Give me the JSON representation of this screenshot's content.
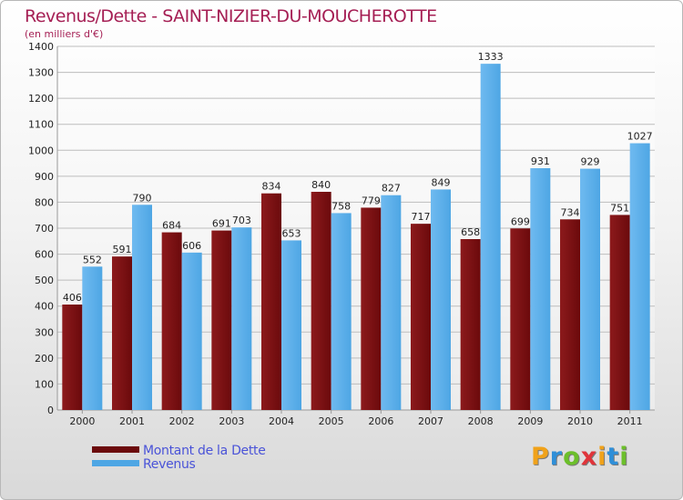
{
  "header": {
    "title": "Revenus/Dette - SAINT-NIZIER-DU-MOUCHEROTTE",
    "subtitle": "(en milliers d'€)"
  },
  "legend": {
    "dette_label": "Montant de la Dette",
    "revenus_label": "Revenus"
  },
  "logo": {
    "letters": [
      "P",
      "r",
      "o",
      "x",
      "i",
      "t",
      "i"
    ],
    "colors": [
      "#f0a21a",
      "#2f8fd8",
      "#6cbf2a",
      "#e0343a",
      "#f0a21a",
      "#2f8fd8",
      "#6cbf2a"
    ]
  },
  "colors": {
    "dette": "#6b0a0c",
    "dette_light": "#8c1a1c",
    "revenus": "#4ea6e4",
    "revenus_light": "#6fbaf0",
    "grid": "#bdbdbd",
    "axis_text": "#222222"
  },
  "chart_data": {
    "type": "bar",
    "categories": [
      "2000",
      "2001",
      "2002",
      "2003",
      "2004",
      "2005",
      "2006",
      "2007",
      "2008",
      "2009",
      "2010",
      "2011"
    ],
    "series": [
      {
        "name": "Montant de la Dette",
        "values": [
          406,
          591,
          684,
          691,
          834,
          840,
          779,
          717,
          658,
          699,
          734,
          751
        ]
      },
      {
        "name": "Revenus",
        "values": [
          552,
          790,
          606,
          703,
          653,
          758,
          827,
          849,
          1333,
          931,
          929,
          1027
        ]
      }
    ],
    "title": "Revenus/Dette - SAINT-NIZIER-DU-MOUCHEROTTE",
    "subtitle": "(en milliers d'€)",
    "ylim": [
      0,
      1400
    ],
    "yticks": [
      "0",
      "100",
      "200",
      "300",
      "400",
      "500",
      "600",
      "700",
      "800",
      "900",
      "1000",
      "1100",
      "1200",
      "1300",
      "1400"
    ],
    "grid": true,
    "legend_position": "bottom-left"
  }
}
